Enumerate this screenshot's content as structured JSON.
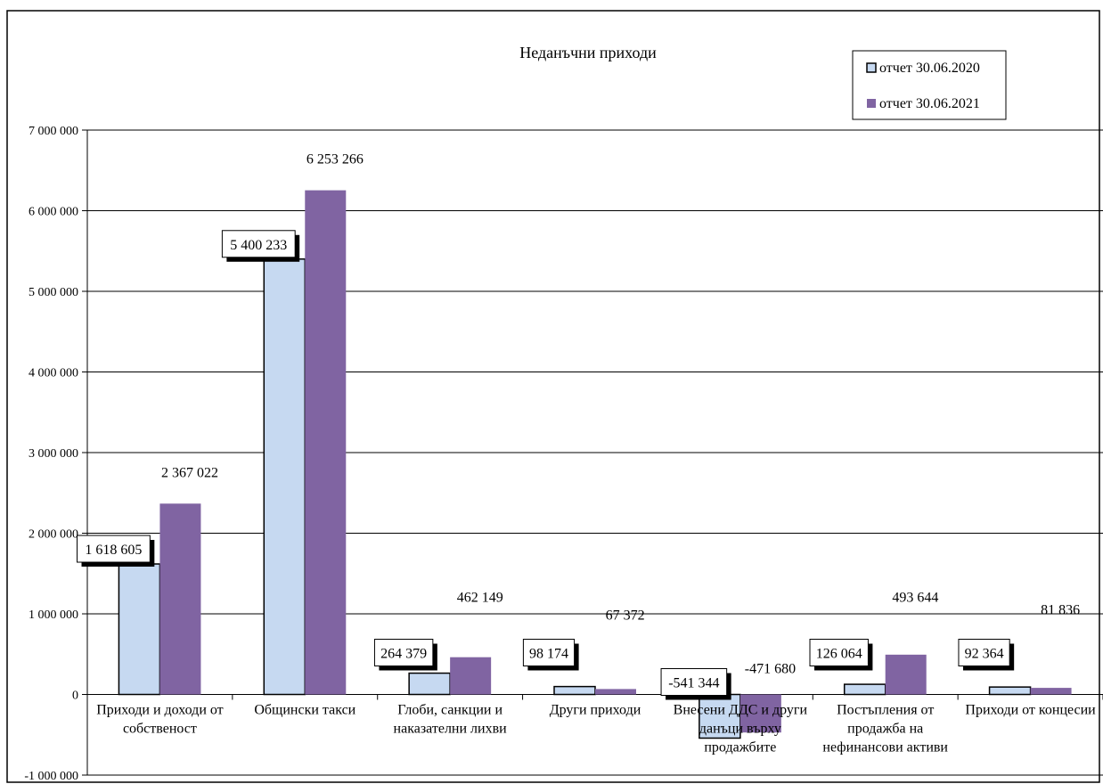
{
  "chart_data": {
    "type": "bar",
    "title": "Неданъчни приходи",
    "categories": [
      [
        "Приходи и доходи от",
        "собственост"
      ],
      [
        "Общински такси"
      ],
      [
        "Глоби, санкции и",
        "наказателни лихви"
      ],
      [
        "Други приходи"
      ],
      [
        "Внесени ДДС и други",
        "данъци върху",
        "продажбите"
      ],
      [
        "Постъпления от",
        "продажба на",
        "нефинансови активи"
      ],
      [
        "Приходи от концесии"
      ]
    ],
    "series": [
      {
        "name": "отчет 30.06.2020",
        "color": "#c6d9f1",
        "values": [
          1618605,
          5400233,
          264379,
          98174,
          -541344,
          126064,
          92364
        ],
        "labels": [
          "1 618 605",
          "5 400 233",
          "264 379",
          "98 174",
          "-541 344",
          "126 064",
          "92 364"
        ]
      },
      {
        "name": "отчет 30.06.2021",
        "color": "#8064a2",
        "values": [
          2367022,
          6253266,
          462149,
          67372,
          -471680,
          493644,
          81836
        ],
        "labels": [
          "2 367 022",
          "6 253 266",
          "462 149",
          "67 372",
          "-471 680",
          "493 644",
          "81 836"
        ]
      }
    ],
    "ylim": [
      -1000000,
      7000000
    ],
    "yticks": [
      -1000000,
      0,
      1000000,
      2000000,
      3000000,
      4000000,
      5000000,
      6000000,
      7000000
    ],
    "ytick_labels": [
      "-1 000 000",
      "0",
      "1 000 000",
      "2 000 000",
      "3 000 000",
      "4 000 000",
      "5 000 000",
      "6 000 000",
      "7 000 000"
    ],
    "grid": true,
    "legend_position": "top-right"
  }
}
